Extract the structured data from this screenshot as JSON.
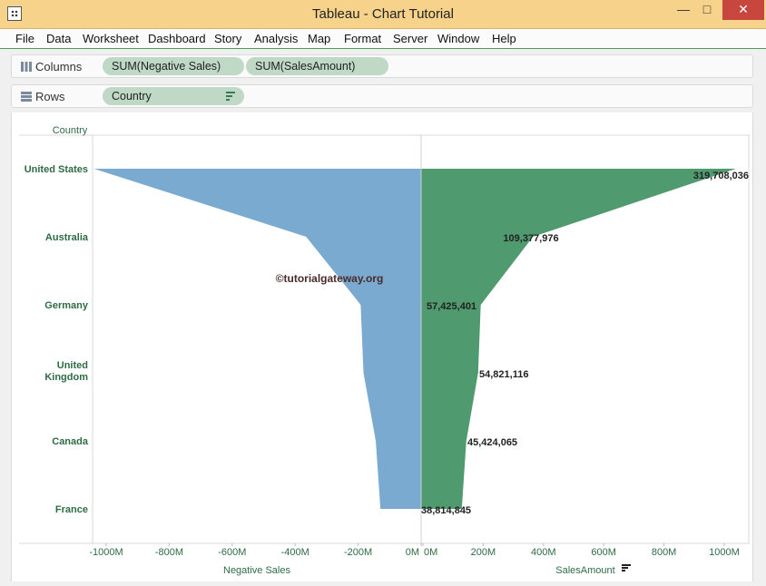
{
  "window": {
    "title": "Tableau - Chart Tutorial",
    "min_glyph": "—",
    "max_glyph": "□",
    "close_glyph": "✕"
  },
  "menu": [
    "File",
    "Data",
    "Worksheet",
    "Dashboard",
    "Story",
    "Analysis",
    "Map",
    "Format",
    "Server",
    "Window",
    "Help"
  ],
  "shelves": {
    "columns": {
      "label": "Columns",
      "pills": [
        "SUM(Negative Sales)",
        "SUM(SalesAmount)"
      ]
    },
    "rows": {
      "label": "Rows",
      "pills": [
        "Country"
      ]
    }
  },
  "colors": {
    "negative": "#7aaacf",
    "positive": "#4f9a6f",
    "label_green": "#2e6b45",
    "axis_text": "#2e6b45"
  },
  "watermark": "©tutorialgateway.org",
  "chart_data": {
    "type": "area",
    "row_header": "Country",
    "categories": [
      "United States",
      "Australia",
      "Germany",
      "United Kingdom",
      "Canada",
      "France"
    ],
    "series": [
      {
        "name": "Negative Sales",
        "values": [
          -1039000000,
          -365000000,
          -192000000,
          -183000000,
          -144000000,
          -129000000
        ]
      },
      {
        "name": "SalesAmount",
        "values": [
          1039000000,
          365000000,
          192000000,
          183000000,
          144000000,
          129000000
        ]
      }
    ],
    "data_labels": [
      "319,708,036",
      "109,377,976",
      "57,425,401",
      "54,821,116",
      "45,424,065",
      "38,814,845"
    ],
    "left_axis": {
      "title": "Negative Sales",
      "range": [
        -1090000000,
        0
      ],
      "ticks": [
        -1000000000,
        -800000000,
        -600000000,
        -400000000,
        -200000000,
        0
      ],
      "tick_labels": [
        "-1000M",
        "-800M",
        "-600M",
        "-400M",
        "-200M",
        "0M"
      ]
    },
    "right_axis": {
      "title": "SalesAmount",
      "range": [
        0,
        1090000000
      ],
      "ticks": [
        0,
        200000000,
        400000000,
        600000000,
        800000000,
        1000000000
      ],
      "tick_labels": [
        "0M",
        "200M",
        "400M",
        "600M",
        "800M",
        "1000M"
      ]
    }
  }
}
